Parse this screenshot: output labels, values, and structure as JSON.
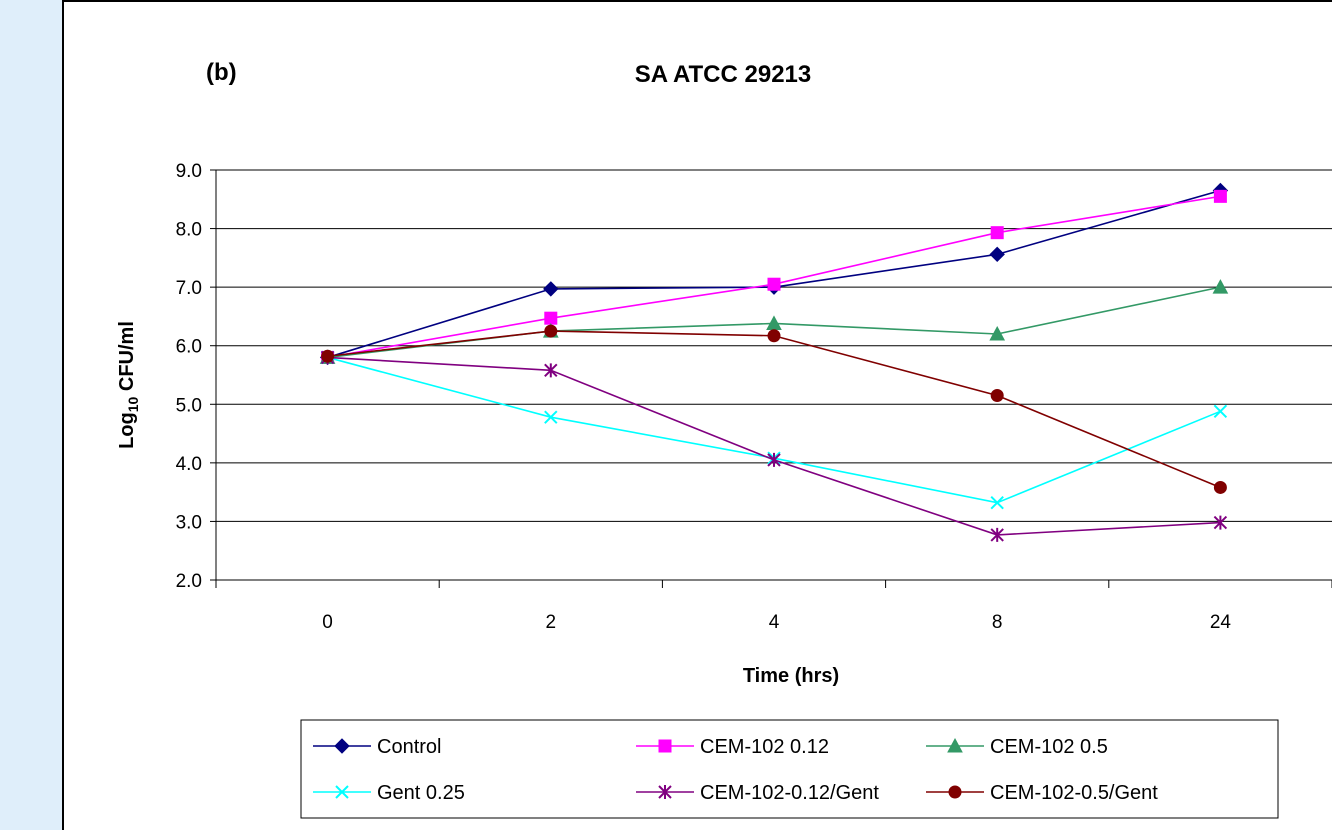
{
  "chart_data": {
    "type": "line",
    "panel_label": "(b)",
    "title": "SA ATCC 29213",
    "xlabel": "Time (hrs)",
    "ylabel_main": "Log",
    "ylabel_sub": "10",
    "ylabel_rest": " CFU/ml",
    "categories": [
      "0",
      "2",
      "4",
      "8",
      "24"
    ],
    "ylim": [
      2.0,
      9.0
    ],
    "yticks": [
      "2.0",
      "3.0",
      "4.0",
      "5.0",
      "6.0",
      "7.0",
      "8.0",
      "9.0"
    ],
    "grid": true,
    "legend_position": "bottom",
    "series": [
      {
        "name": "Control",
        "color": "#000080",
        "marker": "diamond",
        "values": [
          5.8,
          6.97,
          7.0,
          7.56,
          8.65
        ]
      },
      {
        "name": "CEM-102 0.12",
        "color": "#ff00ff",
        "marker": "square",
        "values": [
          5.8,
          6.47,
          7.05,
          7.93,
          8.55
        ]
      },
      {
        "name": "CEM-102 0.5",
        "color": "#339966",
        "marker": "triangle",
        "values": [
          5.8,
          6.25,
          6.38,
          6.2,
          7.0
        ]
      },
      {
        "name": "Gent 0.25",
        "color": "#00ffff",
        "marker": "x",
        "values": [
          5.8,
          4.78,
          4.08,
          3.32,
          4.88
        ]
      },
      {
        "name": "CEM-102-0.12/Gent",
        "color": "#800080",
        "marker": "star",
        "values": [
          5.8,
          5.58,
          4.05,
          2.77,
          2.98
        ]
      },
      {
        "name": "CEM-102-0.5/Gent",
        "color": "#800000",
        "marker": "circle",
        "values": [
          5.82,
          6.25,
          6.17,
          5.15,
          3.58
        ]
      }
    ]
  }
}
